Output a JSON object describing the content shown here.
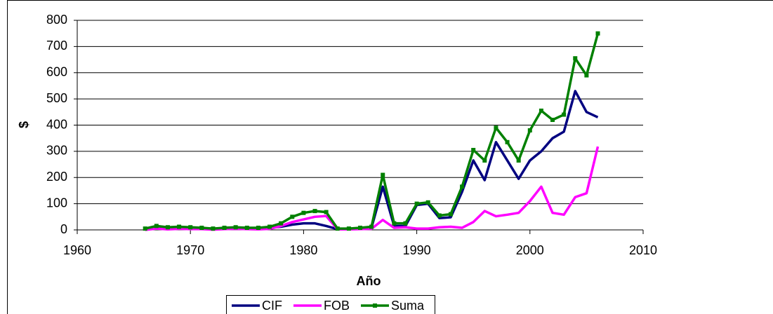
{
  "chart_data": {
    "type": "line",
    "x_label": "Año",
    "y_label": "$",
    "x": [
      1966,
      1967,
      1968,
      1969,
      1970,
      1971,
      1972,
      1973,
      1974,
      1975,
      1976,
      1977,
      1978,
      1979,
      1980,
      1981,
      1982,
      1983,
      1984,
      1985,
      1986,
      1987,
      1988,
      1989,
      1990,
      1991,
      1992,
      1993,
      1994,
      1995,
      1996,
      1997,
      1998,
      1999,
      2000,
      2001,
      2002,
      2003,
      2004,
      2005,
      2006
    ],
    "series": [
      {
        "name": "CIF",
        "color": "#000080",
        "values": [
          5,
          10,
          8,
          8,
          7,
          5,
          4,
          5,
          6,
          5,
          6,
          8,
          12,
          20,
          25,
          25,
          15,
          3,
          3,
          5,
          8,
          165,
          15,
          15,
          95,
          100,
          45,
          48,
          145,
          265,
          190,
          335,
          265,
          195,
          265,
          300,
          350,
          375,
          530,
          450,
          430
        ]
      },
      {
        "name": "FOB",
        "color": "#ff00ff",
        "values": [
          0,
          5,
          2,
          4,
          3,
          3,
          1,
          3,
          4,
          3,
          2,
          4,
          15,
          30,
          40,
          50,
          53,
          2,
          2,
          3,
          4,
          38,
          8,
          10,
          5,
          5,
          10,
          12,
          8,
          30,
          72,
          52,
          58,
          65,
          110,
          165,
          65,
          58,
          125,
          140,
          318
        ]
      },
      {
        "name": "Suma",
        "color": "#008000",
        "marker": "square",
        "values": [
          5,
          15,
          10,
          12,
          10,
          8,
          5,
          8,
          10,
          8,
          8,
          12,
          25,
          50,
          65,
          72,
          68,
          5,
          5,
          8,
          12,
          210,
          25,
          25,
          100,
          105,
          55,
          60,
          165,
          305,
          265,
          390,
          335,
          265,
          380,
          455,
          420,
          440,
          655,
          590,
          750
        ]
      }
    ],
    "xlim": [
      1960,
      2010
    ],
    "xticks": [
      1960,
      1970,
      1980,
      1990,
      2000,
      2010
    ],
    "ylim": [
      0,
      800
    ],
    "yticks": [
      0,
      100,
      200,
      300,
      400,
      500,
      600,
      700,
      800
    ],
    "grid": true,
    "legend": "bottom"
  }
}
